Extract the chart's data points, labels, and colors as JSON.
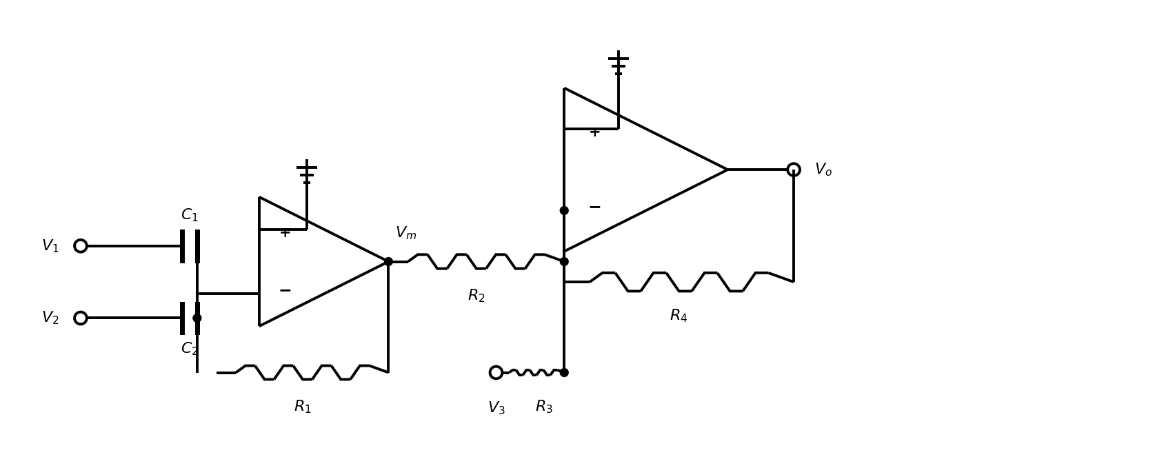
{
  "bg_color": "#ffffff",
  "line_color": "#000000",
  "lw": 2.8,
  "fig_width": 16.75,
  "fig_height": 6.79,
  "labels": {
    "V1": "V",
    "V1_sub": "1",
    "V2": "V",
    "V2_sub": "2",
    "V3": "V",
    "V3_sub": "3",
    "Vm": "V",
    "Vm_sub": "m",
    "Vo": "V",
    "Vo_sub": "o",
    "C1": "C",
    "C1_sub": "1",
    "C2": "C",
    "C2_sub": "2",
    "R1": "R",
    "R1_sub": "1",
    "R2": "R",
    "R2_sub": "2",
    "R3": "R",
    "R3_sub": "3",
    "R4": "R",
    "R4_sub": "4"
  }
}
